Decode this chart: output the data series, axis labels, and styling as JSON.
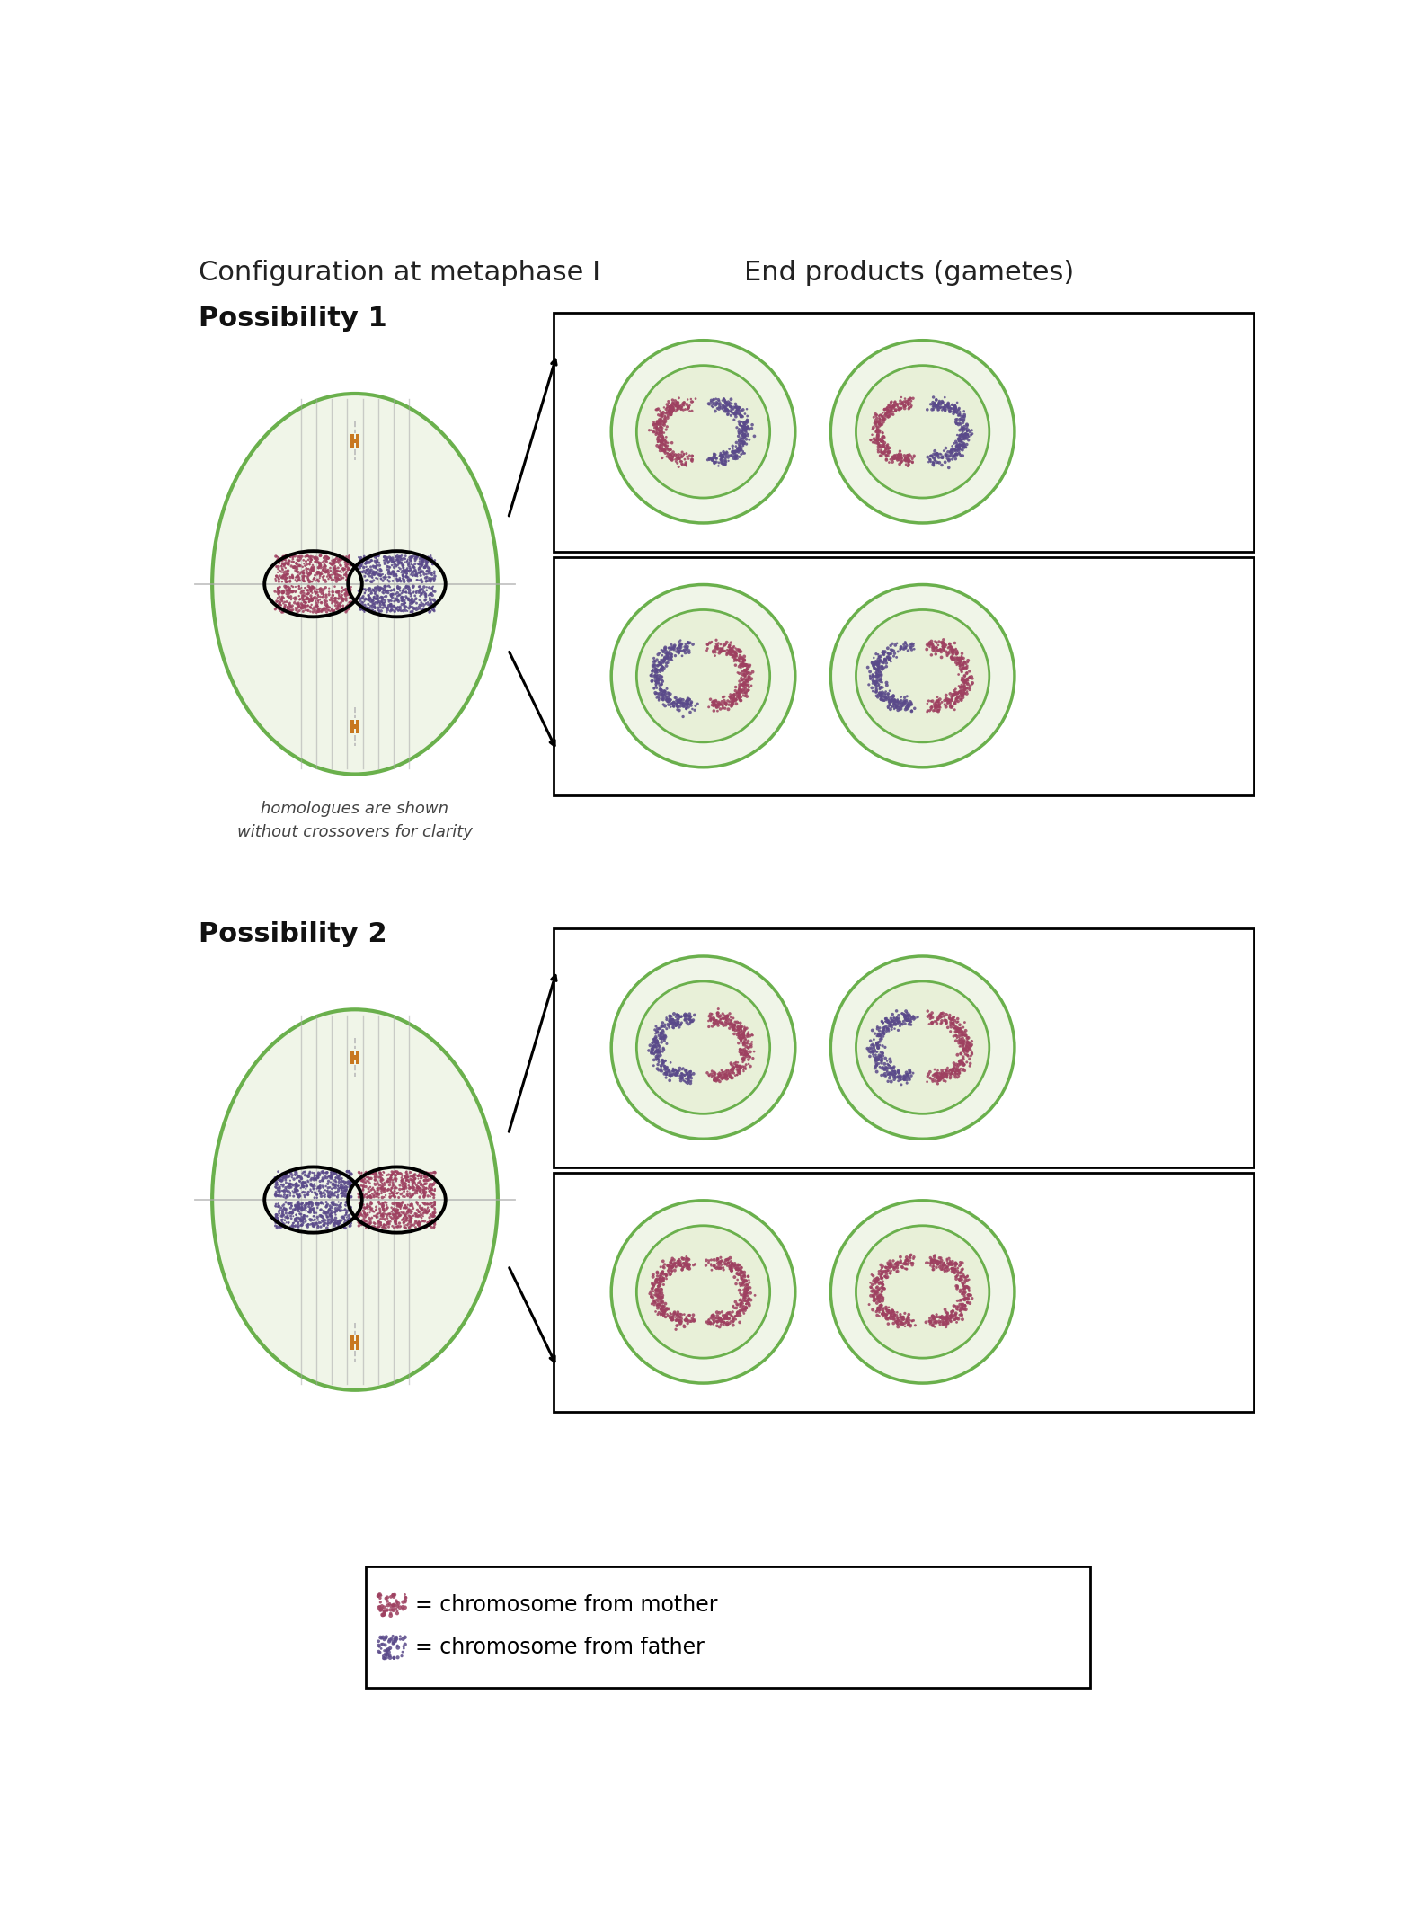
{
  "title_left": "Configuration at metaphase I",
  "title_right": "End products (gametes)",
  "possibility1_label": "Possibility 1",
  "possibility2_label": "Possibility 2",
  "legend_mother": "= chromosome from mother",
  "legend_father": "= chromosome from father",
  "bg_color": "#ffffff",
  "cell_fill": "#f0f5e8",
  "cell_edge": "#6ab04c",
  "inner_cell_fill": "#e8f0d8",
  "inner_cell_edge": "#6ab04c",
  "spindle_color": "#aaaaaa",
  "chromosome_mother": "#9e4060",
  "chromosome_father": "#5a4a8a",
  "centromere_color": "#c87820",
  "outline_color": "#000000",
  "arrow_color": "#000000",
  "box_edge": "#000000",
  "box_fill": "#ffffff"
}
